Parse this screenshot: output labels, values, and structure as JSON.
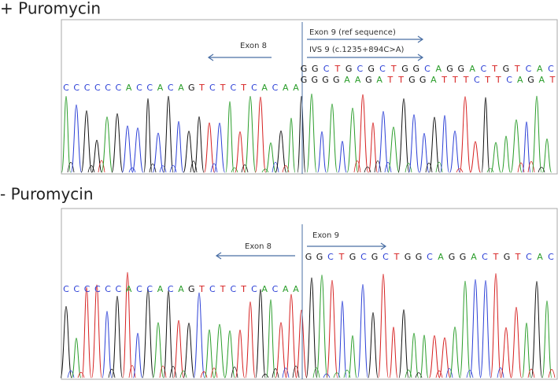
{
  "panels": [
    {
      "title": "+ Puromycin",
      "exon8_label": "Exon 8",
      "exon9_label": "Exon 9 (ref sequence)",
      "ivs_label": "IVS 9 (c.1235+894C>A)",
      "left_sequence": "CCCCCCACCACAGTCTCTCACAA",
      "right_sequences": [
        "GGCTGCGCTGGCAGGACTGTCAC",
        "GGGGAAGATTGGATTTCTTCAGAT"
      ]
    },
    {
      "title": "- Puromycin",
      "exon8_label": "Exon 8",
      "exon9_label": "Exon 9",
      "left_sequence": "CCCCCCACCACAGTCTCTCACAA",
      "right_sequences": [
        "GGCTGCGCTGGCAGGACTGTCAC"
      ]
    }
  ]
}
